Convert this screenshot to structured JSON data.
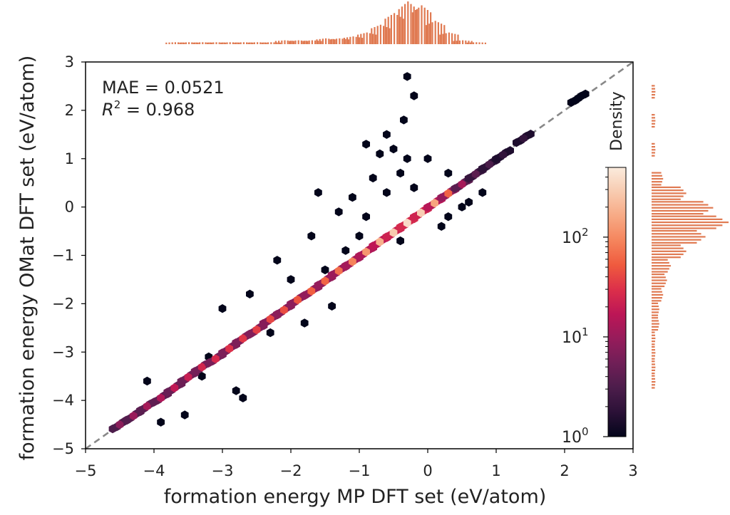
{
  "chart_data": {
    "type": "hexbin",
    "xlabel": "formation energy MP DFT set (eV/atom)",
    "ylabel": "formation energy OMat DFT set (eV/atom)",
    "xlim": [
      -5,
      3
    ],
    "ylim": [
      -5,
      3
    ],
    "xticks": [
      "−5",
      "−4",
      "−3",
      "−2",
      "−1",
      "0",
      "1",
      "2",
      "3"
    ],
    "yticks": [
      "−5",
      "−4",
      "−3",
      "−2",
      "−1",
      "0",
      "1",
      "2",
      "3"
    ],
    "xtick_values": [
      -5,
      -4,
      -3,
      -2,
      -1,
      0,
      1,
      2,
      3
    ],
    "ytick_values": [
      -5,
      -4,
      -3,
      -2,
      -1,
      0,
      1,
      2,
      3
    ],
    "annotations": {
      "mae": "MAE = 0.0521",
      "r2_prefix": "R",
      "r2_exp": "2",
      "r2_suffix": " = 0.968"
    },
    "reference_line": {
      "type": "y=x",
      "style": "dashed",
      "color": "#888888"
    },
    "colorbar": {
      "label": "Density",
      "scale": "log",
      "range": [
        1,
        500
      ],
      "ticks": [
        {
          "base": "10",
          "exp": "0",
          "value": 1
        },
        {
          "base": "10",
          "exp": "1",
          "value": 10
        },
        {
          "base": "10",
          "exp": "2",
          "value": 100
        }
      ]
    },
    "colormap": [
      "#03051a",
      "#2b1137",
      "#4c1d4b",
      "#701f57",
      "#961c5b",
      "#bc1656",
      "#dc2f4a",
      "#ef5a3e",
      "#f5845c",
      "#f7a984",
      "#f8cbb0",
      "#faebdd"
    ],
    "marginal_color": "#e07a52",
    "ridge": [
      {
        "x": -4.5,
        "y": -4.5,
        "d": 8
      },
      {
        "x": -4.3,
        "y": -4.32,
        "d": 10
      },
      {
        "x": -4.1,
        "y": -4.12,
        "d": 12
      },
      {
        "x": -3.9,
        "y": -3.95,
        "d": 14
      },
      {
        "x": -3.7,
        "y": -3.74,
        "d": 18
      },
      {
        "x": -3.5,
        "y": -3.52,
        "d": 20
      },
      {
        "x": -3.3,
        "y": -3.31,
        "d": 24
      },
      {
        "x": -3.1,
        "y": -3.14,
        "d": 26
      },
      {
        "x": -2.9,
        "y": -2.93,
        "d": 30
      },
      {
        "x": -2.7,
        "y": -2.72,
        "d": 32
      },
      {
        "x": -2.5,
        "y": -2.54,
        "d": 36
      },
      {
        "x": -2.3,
        "y": -2.32,
        "d": 40
      },
      {
        "x": -2.1,
        "y": -2.13,
        "d": 44
      },
      {
        "x": -1.9,
        "y": -1.92,
        "d": 48
      },
      {
        "x": -1.7,
        "y": -1.74,
        "d": 55
      },
      {
        "x": -1.5,
        "y": -1.53,
        "d": 60
      },
      {
        "x": -1.3,
        "y": -1.32,
        "d": 70
      },
      {
        "x": -1.1,
        "y": -1.13,
        "d": 90
      },
      {
        "x": -0.9,
        "y": -0.93,
        "d": 120
      },
      {
        "x": -0.7,
        "y": -0.72,
        "d": 180
      },
      {
        "x": -0.5,
        "y": -0.53,
        "d": 280
      },
      {
        "x": -0.3,
        "y": -0.33,
        "d": 380
      },
      {
        "x": -0.1,
        "y": -0.12,
        "d": 300
      },
      {
        "x": 0.1,
        "y": 0.08,
        "d": 150
      },
      {
        "x": 0.3,
        "y": 0.28,
        "d": 60
      },
      {
        "x": 0.5,
        "y": 0.47,
        "d": 12
      },
      {
        "x": 0.7,
        "y": 0.68,
        "d": 4
      },
      {
        "x": 0.9,
        "y": 0.88,
        "d": 3
      },
      {
        "x": 1.1,
        "y": 1.08,
        "d": 2
      },
      {
        "x": 1.4,
        "y": 1.42,
        "d": 2
      },
      {
        "x": 2.2,
        "y": 2.25,
        "d": 1
      }
    ],
    "outliers": [
      {
        "x": -0.3,
        "y": 2.7
      },
      {
        "x": -0.2,
        "y": 2.3
      },
      {
        "x": -0.35,
        "y": 1.8
      },
      {
        "x": -0.6,
        "y": 1.5
      },
      {
        "x": -0.9,
        "y": 1.3
      },
      {
        "x": -0.7,
        "y": 1.1
      },
      {
        "x": -0.5,
        "y": 1.2
      },
      {
        "x": -0.3,
        "y": 1.0
      },
      {
        "x": -1.6,
        "y": 0.3
      },
      {
        "x": -1.1,
        "y": 0.2
      },
      {
        "x": -1.3,
        "y": -0.1
      },
      {
        "x": -1.7,
        "y": -0.6
      },
      {
        "x": -1.2,
        "y": -0.9
      },
      {
        "x": -1.0,
        "y": -0.6
      },
      {
        "x": -2.2,
        "y": -1.1
      },
      {
        "x": -2.0,
        "y": -1.5
      },
      {
        "x": -1.5,
        "y": -1.3
      },
      {
        "x": -3.0,
        "y": -2.1
      },
      {
        "x": -2.6,
        "y": -1.8
      },
      {
        "x": -1.4,
        "y": -2.05
      },
      {
        "x": -2.8,
        "y": -3.8
      },
      {
        "x": -2.7,
        "y": -3.95
      },
      {
        "x": -3.9,
        "y": -4.45
      },
      {
        "x": -3.55,
        "y": -4.3
      },
      {
        "x": -4.1,
        "y": -3.6
      },
      {
        "x": -3.2,
        "y": -3.1
      },
      {
        "x": -0.8,
        "y": 0.6
      },
      {
        "x": -0.4,
        "y": 0.7
      },
      {
        "x": 0.0,
        "y": 1.0
      },
      {
        "x": 0.3,
        "y": 0.7
      },
      {
        "x": -0.2,
        "y": 0.4
      },
      {
        "x": -0.6,
        "y": 0.3
      },
      {
        "x": 0.3,
        "y": -0.2
      },
      {
        "x": 0.5,
        "y": 0.0
      },
      {
        "x": 0.2,
        "y": -0.4
      },
      {
        "x": -0.4,
        "y": -0.7
      },
      {
        "x": -1.8,
        "y": -2.4
      },
      {
        "x": -2.3,
        "y": -2.6
      },
      {
        "x": -3.3,
        "y": -3.5
      },
      {
        "x": 0.8,
        "y": 0.3
      },
      {
        "x": 0.6,
        "y": 0.1
      },
      {
        "x": -0.9,
        "y": -0.2
      }
    ],
    "marginal_x": [
      {
        "x": -3.7,
        "c": 1
      },
      {
        "x": -3.5,
        "c": 1
      },
      {
        "x": -3.3,
        "c": 1
      },
      {
        "x": -3.1,
        "c": 1
      },
      {
        "x": -2.9,
        "c": 1
      },
      {
        "x": -2.7,
        "c": 1
      },
      {
        "x": -2.5,
        "c": 1
      },
      {
        "x": -2.3,
        "c": 1
      },
      {
        "x": -2.1,
        "c": 2
      },
      {
        "x": -1.9,
        "c": 2
      },
      {
        "x": -1.7,
        "c": 2
      },
      {
        "x": -1.5,
        "c": 3
      },
      {
        "x": -1.3,
        "c": 3
      },
      {
        "x": -1.1,
        "c": 4
      },
      {
        "x": -0.9,
        "c": 6
      },
      {
        "x": -0.7,
        "c": 10
      },
      {
        "x": -0.5,
        "c": 16
      },
      {
        "x": -0.3,
        "c": 22
      },
      {
        "x": -0.1,
        "c": 20
      },
      {
        "x": 0.1,
        "c": 12
      },
      {
        "x": 0.3,
        "c": 6
      },
      {
        "x": 0.5,
        "c": 2
      },
      {
        "x": 0.7,
        "c": 1
      }
    ],
    "marginal_y": [
      {
        "y": -3.6,
        "c": 1
      },
      {
        "y": -3.3,
        "c": 1
      },
      {
        "y": -3.0,
        "c": 1
      },
      {
        "y": -2.7,
        "c": 1
      },
      {
        "y": -2.4,
        "c": 2
      },
      {
        "y": -2.1,
        "c": 2
      },
      {
        "y": -1.8,
        "c": 3
      },
      {
        "y": -1.5,
        "c": 4
      },
      {
        "y": -1.2,
        "c": 5
      },
      {
        "y": -0.9,
        "c": 9
      },
      {
        "y": -0.6,
        "c": 14
      },
      {
        "y": -0.3,
        "c": 20
      },
      {
        "y": 0.0,
        "c": 16
      },
      {
        "y": 0.3,
        "c": 9
      },
      {
        "y": 0.6,
        "c": 3
      },
      {
        "y": 1.2,
        "c": 1
      },
      {
        "y": 1.8,
        "c": 1
      },
      {
        "y": 2.4,
        "c": 1
      }
    ]
  }
}
